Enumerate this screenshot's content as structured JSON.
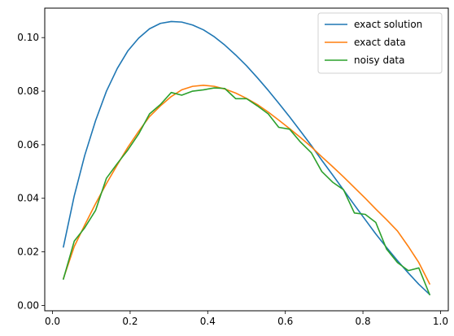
{
  "chart_data": {
    "type": "line",
    "title": "",
    "xlabel": "",
    "ylabel": "",
    "xlim": [
      -0.02,
      1.02
    ],
    "ylim": [
      -0.002,
      0.111
    ],
    "grid": false,
    "legend_position": "top-right",
    "x_ticks": [
      0.0,
      0.2,
      0.4,
      0.6,
      0.8,
      1.0
    ],
    "x_tick_labels": [
      "0.0",
      "0.2",
      "0.4",
      "0.6",
      "0.8",
      "1.0"
    ],
    "y_ticks": [
      0.0,
      0.02,
      0.04,
      0.06,
      0.08,
      0.1
    ],
    "y_tick_labels": [
      "0.00",
      "0.02",
      "0.04",
      "0.06",
      "0.08",
      "0.10"
    ],
    "x": [
      0.028,
      0.056,
      0.083,
      0.111,
      0.139,
      0.167,
      0.194,
      0.222,
      0.25,
      0.278,
      0.306,
      0.333,
      0.361,
      0.389,
      0.417,
      0.444,
      0.472,
      0.5,
      0.528,
      0.556,
      0.583,
      0.611,
      0.639,
      0.667,
      0.694,
      0.722,
      0.75,
      0.778,
      0.806,
      0.833,
      0.861,
      0.889,
      0.917,
      0.944,
      0.972
    ],
    "series": [
      {
        "name": "exact solution",
        "color": "#1f77b4",
        "values": [
          0.0218,
          0.0409,
          0.056,
          0.069,
          0.08,
          0.0885,
          0.095,
          0.0998,
          0.1033,
          0.1053,
          0.106,
          0.1058,
          0.1047,
          0.1029,
          0.1003,
          0.0972,
          0.0935,
          0.0895,
          0.085,
          0.0803,
          0.0755,
          0.0704,
          0.0651,
          0.0597,
          0.0542,
          0.0487,
          0.0431,
          0.0375,
          0.032,
          0.0267,
          0.0216,
          0.0167,
          0.0121,
          0.0079,
          0.0041
        ]
      },
      {
        "name": "exact data",
        "color": "#ff7f0e",
        "values": [
          0.01,
          0.022,
          0.03,
          0.038,
          0.0455,
          0.0525,
          0.059,
          0.065,
          0.0705,
          0.0745,
          0.078,
          0.0805,
          0.0818,
          0.0822,
          0.0818,
          0.0808,
          0.0793,
          0.0773,
          0.075,
          0.0722,
          0.0692,
          0.066,
          0.0627,
          0.0592,
          0.0555,
          0.0518,
          0.048,
          0.044,
          0.04,
          0.036,
          0.032,
          0.0278,
          0.022,
          0.016,
          0.008
        ]
      },
      {
        "name": "noisy data",
        "color": "#2ca02c",
        "values": [
          0.0098,
          0.024,
          0.029,
          0.0355,
          0.0475,
          0.053,
          0.058,
          0.064,
          0.0715,
          0.075,
          0.0795,
          0.0785,
          0.08,
          0.0805,
          0.0812,
          0.081,
          0.0772,
          0.0772,
          0.0745,
          0.0715,
          0.0665,
          0.0658,
          0.061,
          0.057,
          0.05,
          0.046,
          0.0432,
          0.0345,
          0.034,
          0.031,
          0.021,
          0.016,
          0.013,
          0.014,
          0.004
        ]
      }
    ]
  }
}
